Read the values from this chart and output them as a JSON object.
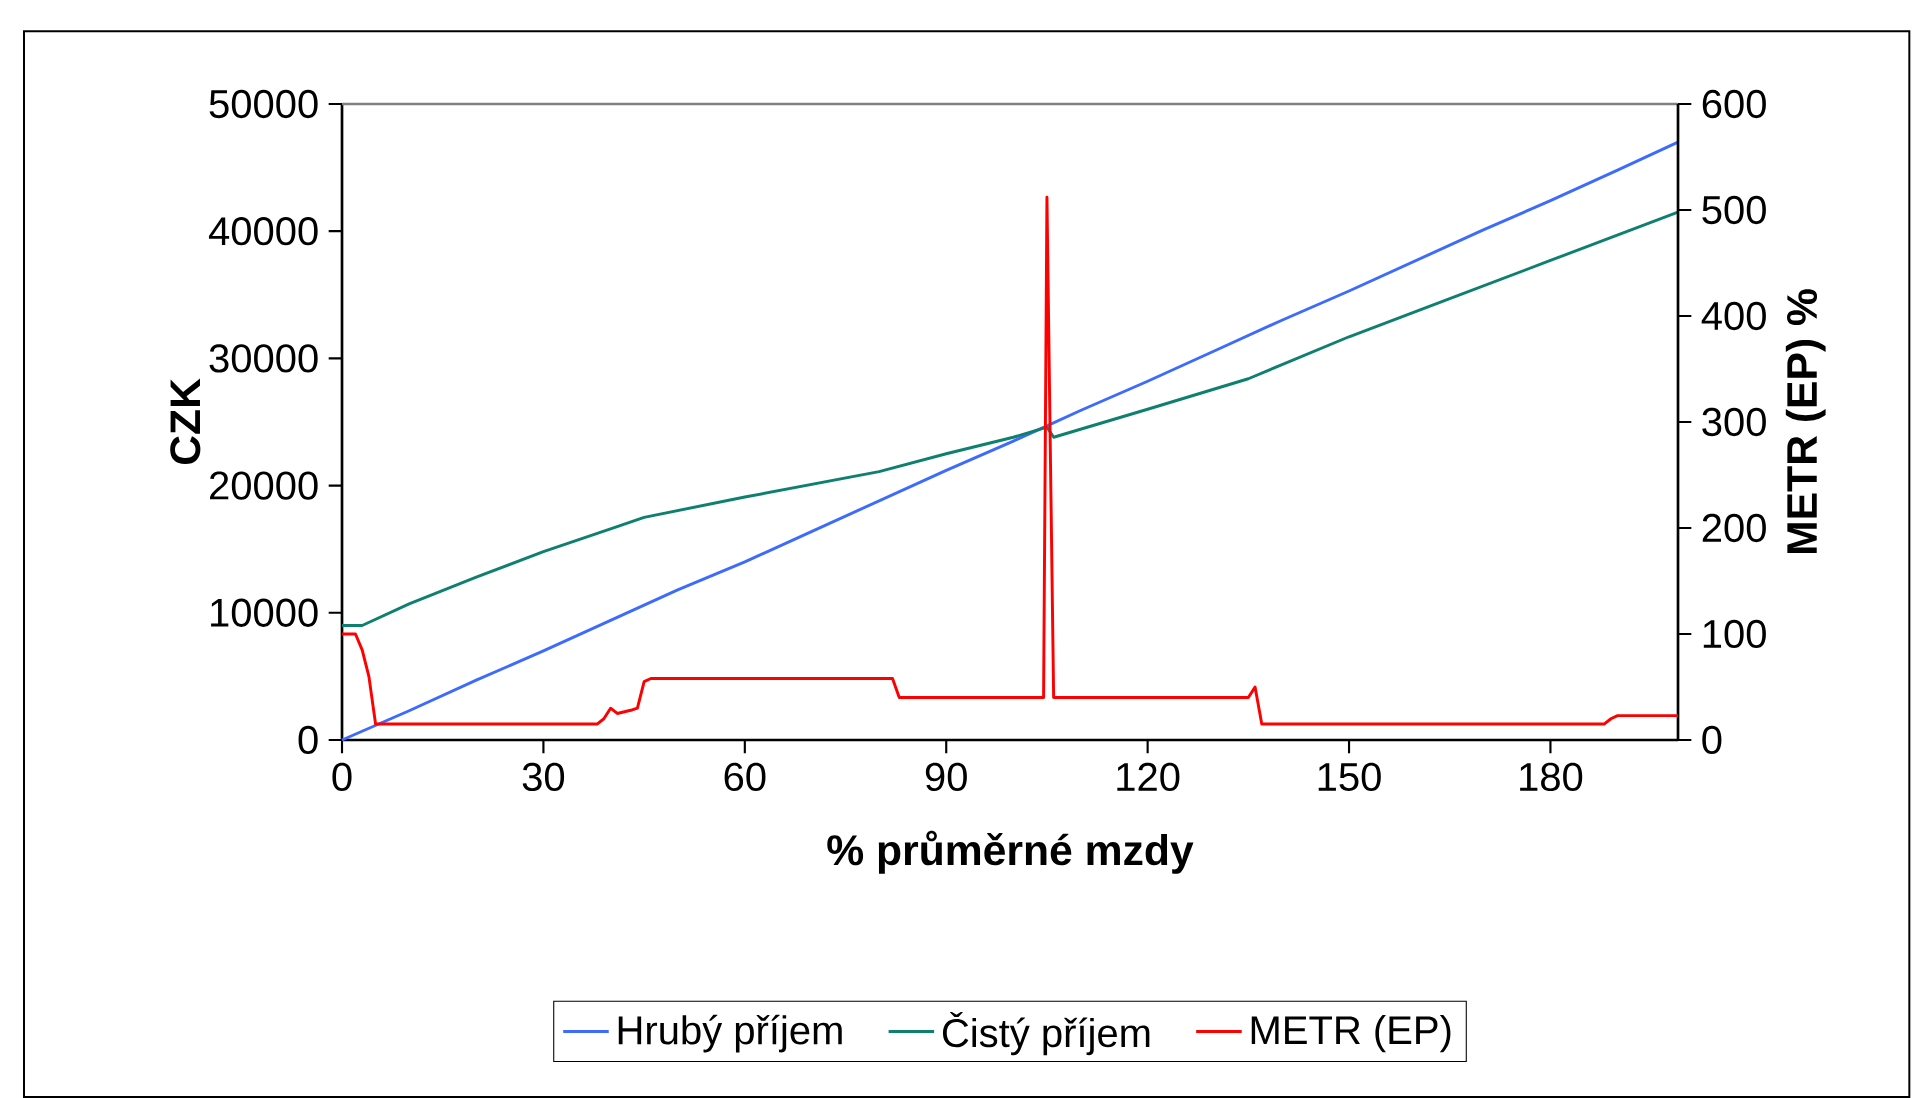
{
  "chart_data": {
    "type": "line",
    "xlabel": "% průměrné mzdy",
    "ylabel": "CZK",
    "y2label": "METR (EP) %",
    "xlim": [
      0,
      199
    ],
    "xticks": [
      0,
      30,
      60,
      90,
      120,
      150,
      180
    ],
    "ylim": [
      0,
      50000
    ],
    "yticks": [
      0,
      10000,
      20000,
      30000,
      40000,
      50000
    ],
    "y2lim": [
      0,
      600
    ],
    "y2ticks": [
      0,
      100,
      200,
      300,
      400,
      500,
      600
    ],
    "grid": false,
    "legend": "bottom",
    "marker": "none",
    "line_style": "solid",
    "series": [
      {
        "name": "Hrubý příjem",
        "color": "#3d6bff",
        "x": [
          0,
          10,
          20,
          30,
          40,
          50,
          60,
          70,
          80,
          90,
          100,
          105,
          110,
          120,
          130,
          140,
          150,
          160,
          170,
          180,
          190,
          199
        ],
        "values": [
          0,
          2300,
          4700,
          7000,
          9400,
          11800,
          14000,
          16400,
          18800,
          21200,
          23500,
          24700,
          25900,
          28200,
          30600,
          33000,
          35300,
          37700,
          40100,
          42400,
          44800,
          47000
        ]
      },
      {
        "name": "Čistý příjem",
        "color": "#0f8070",
        "x": [
          0,
          3,
          10,
          20,
          30,
          40,
          45,
          60,
          80,
          90,
          100,
          105,
          106,
          120,
          135,
          150,
          165,
          180,
          199
        ],
        "values": [
          9000,
          9000,
          10700,
          12800,
          14800,
          16600,
          17500,
          19100,
          21100,
          22500,
          23800,
          24600,
          23800,
          26000,
          28400,
          31700,
          34700,
          37700,
          41500
        ]
      },
      {
        "name": "METR (EP)",
        "color": "#ff0000",
        "axis": "y2",
        "x": [
          0,
          2,
          3,
          4,
          5,
          38,
          39,
          40,
          41,
          43,
          44,
          45,
          46,
          82,
          83,
          104.5,
          105,
          106,
          135,
          136,
          137,
          188,
          189,
          190,
          199
        ],
        "values": [
          100,
          100,
          85,
          60,
          15,
          15,
          20,
          30,
          25,
          28,
          30,
          55,
          58,
          58,
          40,
          40,
          512,
          40,
          40,
          50,
          15,
          15,
          20,
          23,
          23
        ]
      }
    ]
  }
}
